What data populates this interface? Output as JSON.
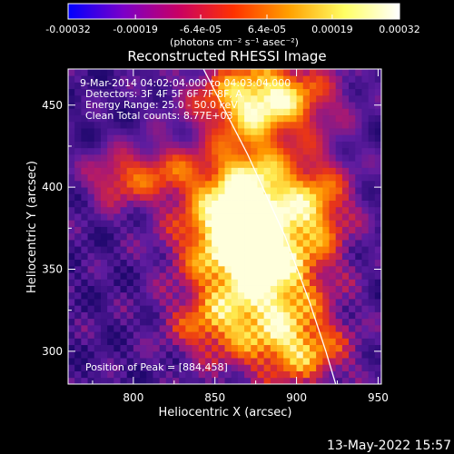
{
  "colorbar": {
    "tick_labels": [
      "-0.00032",
      "-0.00019",
      "-6.4e-05",
      "6.4e-05",
      "0.00019",
      "0.00032"
    ],
    "tick_values": [
      -0.00032,
      -0.00019,
      -6.4e-05,
      6.4e-05,
      0.00019,
      0.00032
    ],
    "range": [
      -0.00032,
      0.00032
    ],
    "unit_label": "(photons cm⁻² s⁻¹ asec⁻²)",
    "colors": [
      "#0000ff",
      "#7b00c8",
      "#c80064",
      "#ff3200",
      "#ffa000",
      "#ffff64",
      "#ffffff"
    ]
  },
  "chart_data": {
    "type": "heatmap",
    "title": "Reconstructed RHESSI Image",
    "xlabel": "Heliocentric X (arcsec)",
    "ylabel": "Heliocentric Y (arcsec)",
    "xlim": [
      760,
      952
    ],
    "ylim": [
      280,
      472
    ],
    "x_ticks": [
      800,
      850,
      900,
      950
    ],
    "y_ticks": [
      300,
      350,
      400,
      450
    ],
    "info_lines": [
      "9-Mar-2014 04:02:04.000 to 04:03:04.000",
      "Detectors: 3F 4F 5F 6F 7F 8F, A",
      "Energy Range: 25.0 - 50.0 keV",
      "Clean     Total counts: 8.77E+03"
    ],
    "peak_label": "Position of Peak = [884,458]",
    "peak_position": [
      884,
      458
    ],
    "limb_points": [
      [
        843,
        472
      ],
      [
        870,
        420
      ],
      [
        893,
        370
      ],
      [
        908,
        330
      ],
      [
        918,
        300
      ],
      [
        924,
        280
      ]
    ],
    "source_blobs": [
      {
        "x": 880,
        "y": 455,
        "sx": 28,
        "sy": 16,
        "amp": 0.85
      },
      {
        "x": 872,
        "y": 400,
        "sx": 18,
        "sy": 26,
        "amp": 0.6
      },
      {
        "x": 857,
        "y": 372,
        "sx": 24,
        "sy": 26,
        "amp": 0.7
      },
      {
        "x": 885,
        "y": 335,
        "sx": 24,
        "sy": 30,
        "amp": 0.72
      },
      {
        "x": 912,
        "y": 390,
        "sx": 16,
        "sy": 22,
        "amp": 0.55
      },
      {
        "x": 905,
        "y": 300,
        "sx": 20,
        "sy": 14,
        "amp": 0.45
      },
      {
        "x": 790,
        "y": 405,
        "sx": 14,
        "sy": 12,
        "amp": 0.4
      },
      {
        "x": 820,
        "y": 410,
        "sx": 16,
        "sy": 12,
        "amp": 0.35
      },
      {
        "x": 845,
        "y": 315,
        "sx": 18,
        "sy": 14,
        "amp": 0.4
      }
    ]
  },
  "footer": {
    "date": "13-May-2022 15:57"
  }
}
